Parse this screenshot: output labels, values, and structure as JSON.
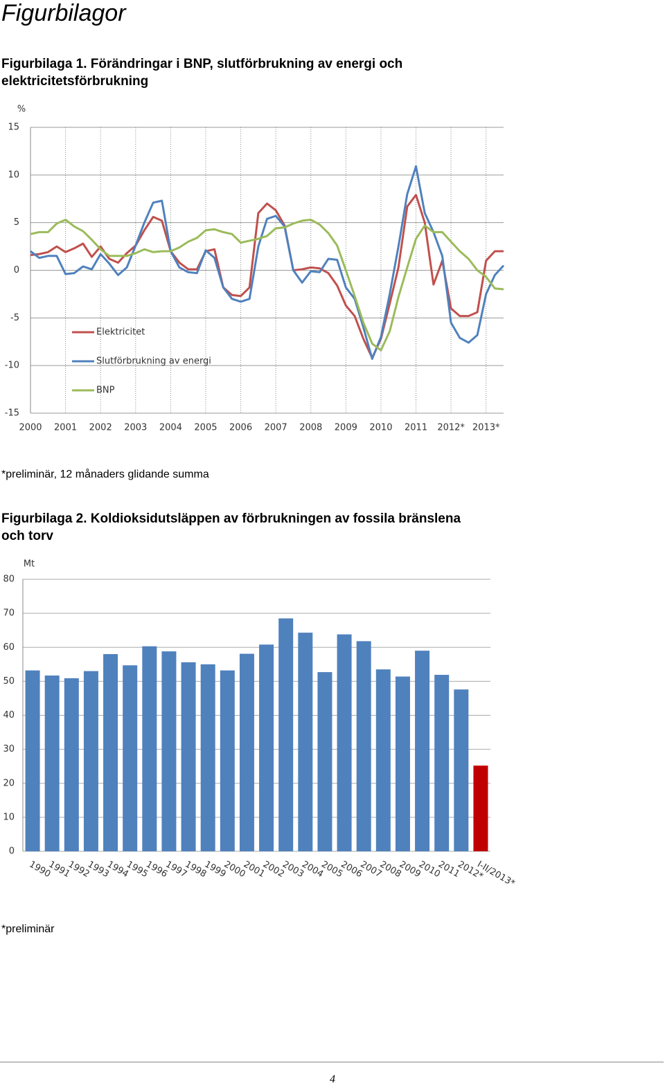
{
  "header": {
    "title": "Figurbilagor"
  },
  "notes": [
    "*preliminär, 12 månaders glidande summa",
    "*preliminär"
  ],
  "footer": {
    "page_number": "4"
  },
  "chart_data": [
    {
      "type": "line",
      "title": "Figurbilaga 1. Förändringar i BNP, slutförbrukning av energi och elektricitetsförbrukning",
      "y_unit": "%",
      "x": [
        2000,
        2000.25,
        2000.5,
        2000.75,
        2001,
        2001.25,
        2001.5,
        2001.75,
        2002,
        2002.25,
        2002.5,
        2002.75,
        2003,
        2003.25,
        2003.5,
        2003.75,
        2004,
        2004.25,
        2004.5,
        2004.75,
        2005,
        2005.25,
        2005.5,
        2005.75,
        2006,
        2006.25,
        2006.5,
        2006.75,
        2007,
        2007.25,
        2007.5,
        2007.75,
        2008,
        2008.25,
        2008.5,
        2008.75,
        2009,
        2009.25,
        2009.5,
        2009.75,
        2010,
        2010.25,
        2010.5,
        2010.75,
        2011,
        2011.25,
        2011.5,
        2011.75,
        2012,
        2012.25,
        2012.5,
        2012.75,
        2013,
        2013.25,
        2013.5
      ],
      "series": [
        {
          "name": "Elektricitet",
          "color": "#c0504d",
          "values": [
            1.6,
            1.7,
            1.9,
            2.5,
            1.9,
            2.3,
            2.8,
            1.4,
            2.5,
            1.2,
            0.8,
            1.8,
            2.6,
            4.2,
            5.6,
            5.2,
            2.0,
            0.8,
            0.1,
            0.1,
            2.0,
            2.2,
            -1.8,
            -2.6,
            -2.7,
            -1.8,
            6.0,
            7.0,
            6.3,
            4.7,
            0.0,
            0.1,
            0.3,
            0.2,
            -0.3,
            -1.6,
            -3.7,
            -4.8,
            -7.2,
            -9.2,
            -7.2,
            -3.5,
            0.3,
            6.7,
            7.9,
            5.0,
            -1.5,
            1.0,
            -4.0,
            -4.8,
            -4.8,
            -4.4,
            1.0,
            2.0,
            2.0
          ]
        },
        {
          "name": "Slutförbrukning av energi",
          "color": "#4f81bd",
          "values": [
            2.0,
            1.3,
            1.5,
            1.5,
            -0.4,
            -0.3,
            0.4,
            0.1,
            1.7,
            0.7,
            -0.5,
            0.3,
            2.6,
            5.0,
            7.1,
            7.3,
            2.0,
            0.3,
            -0.2,
            -0.3,
            2.1,
            1.3,
            -1.8,
            -3.0,
            -3.3,
            -3.0,
            2.5,
            5.4,
            5.7,
            4.6,
            0.0,
            -1.3,
            -0.1,
            -0.2,
            1.2,
            1.1,
            -1.8,
            -3.0,
            -6.0,
            -9.3,
            -7.0,
            -2.5,
            2.5,
            8.0,
            10.9,
            6.0,
            4.0,
            1.5,
            -5.5,
            -7.1,
            -7.6,
            -6.8,
            -2.5,
            -0.5,
            0.5
          ]
        },
        {
          "name": "BNP",
          "color": "#9bbb59",
          "values": [
            3.8,
            4.0,
            4.0,
            4.9,
            5.3,
            4.6,
            4.1,
            3.2,
            2.2,
            1.5,
            1.5,
            1.5,
            1.8,
            2.2,
            1.9,
            2.0,
            2.0,
            2.4,
            3.0,
            3.4,
            4.2,
            4.3,
            4.0,
            3.8,
            2.9,
            3.1,
            3.3,
            3.6,
            4.4,
            4.5,
            4.9,
            5.2,
            5.3,
            4.8,
            3.9,
            2.6,
            0.0,
            -2.7,
            -5.5,
            -7.7,
            -8.4,
            -6.4,
            -2.8,
            0.3,
            3.3,
            4.7,
            4.0,
            4.0,
            3.0,
            2.0,
            1.2,
            0.0,
            -0.7,
            -1.9,
            -2.0
          ]
        }
      ],
      "xlim": [
        2000,
        2013.5
      ],
      "xticks": [
        2000,
        2001,
        2002,
        2003,
        2004,
        2005,
        2006,
        2007,
        2008,
        2009,
        2010,
        2011,
        {
          "value": 2012,
          "label": "2012*"
        },
        {
          "value": 2013,
          "label": "2013*"
        }
      ],
      "ylim": [
        -15,
        15
      ],
      "yticks": [
        -15,
        -10,
        -5,
        0,
        5,
        10,
        15
      ],
      "grid": true,
      "legend": "lower left"
    },
    {
      "type": "bar",
      "title": "Figurbilaga 2. Koldioksidutsläppen av förbrukningen av fossila bränslena och torv",
      "y_unit": "Mt",
      "categories": [
        "1990",
        "1991",
        "1992",
        "1993",
        "1994",
        "1995",
        "1996",
        "1997",
        "1998",
        "1999",
        "2000",
        "2001",
        "2002",
        "2003",
        "2004",
        "2005",
        "2006",
        "2007",
        "2008",
        "2009",
        "2010",
        "2011",
        "2012*",
        "I-II/2013*"
      ],
      "values": [
        53.2,
        51.7,
        50.9,
        53.0,
        58.0,
        54.7,
        60.3,
        58.8,
        55.6,
        55.0,
        53.2,
        58.1,
        60.8,
        68.5,
        64.3,
        52.7,
        63.8,
        61.8,
        53.5,
        51.4,
        59.0,
        51.9,
        47.6,
        25.2
      ],
      "colors": [
        "#4f81bd",
        "#4f81bd",
        "#4f81bd",
        "#4f81bd",
        "#4f81bd",
        "#4f81bd",
        "#4f81bd",
        "#4f81bd",
        "#4f81bd",
        "#4f81bd",
        "#4f81bd",
        "#4f81bd",
        "#4f81bd",
        "#4f81bd",
        "#4f81bd",
        "#4f81bd",
        "#4f81bd",
        "#4f81bd",
        "#4f81bd",
        "#4f81bd",
        "#4f81bd",
        "#4f81bd",
        "#4f81bd",
        "#c00000"
      ],
      "ylim": [
        0,
        80
      ],
      "yticks": [
        0,
        10,
        20,
        30,
        40,
        50,
        60,
        70,
        80
      ],
      "grid": true
    }
  ]
}
